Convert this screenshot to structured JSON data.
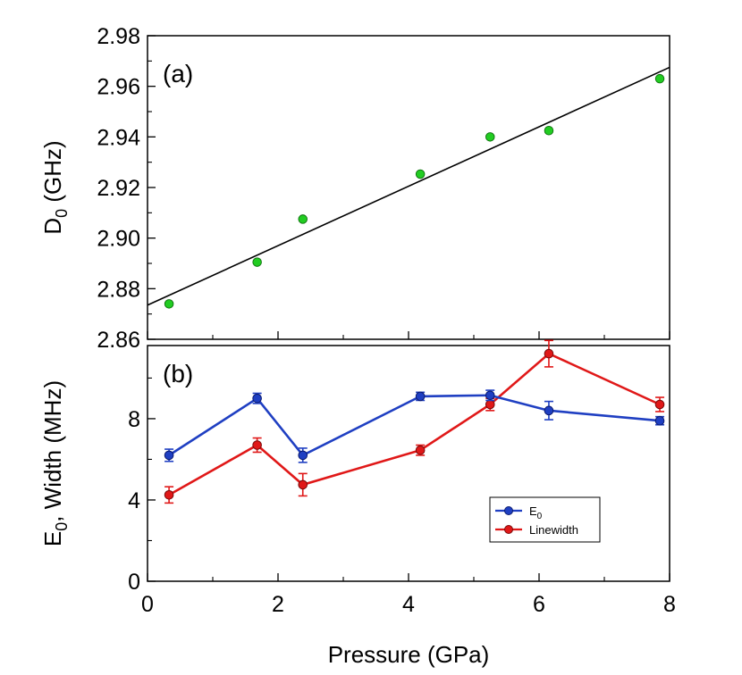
{
  "chart_data": [
    {
      "panel": "(a)",
      "type": "scatter",
      "ylabel_main": "D",
      "ylabel_sub": "0",
      "ylabel_rest": " (GHz)",
      "xlim": [
        0,
        8
      ],
      "ylim": [
        2.86,
        2.98
      ],
      "yticks": [
        2.86,
        2.88,
        2.9,
        2.92,
        2.94,
        2.96,
        2.98
      ],
      "ytick_labels": [
        "2.86",
        "2.88",
        "2.90",
        "2.92",
        "2.94",
        "2.96",
        "2.98"
      ],
      "series": [
        {
          "x": [
            0.33,
            1.68,
            2.38,
            4.18,
            5.25,
            6.15,
            7.85
          ],
          "y": [
            2.874,
            2.8905,
            2.9075,
            2.9253,
            2.94,
            2.9425,
            2.963
          ],
          "color": "#22cc22"
        }
      ],
      "fit_line": {
        "x": [
          0.0,
          8.0
        ],
        "y": [
          2.8735,
          2.9675
        ],
        "color": "#000000"
      },
      "grid": false
    },
    {
      "panel": "(b)",
      "type": "line",
      "ylabel_E": "E",
      "ylabel_sub": "0",
      "ylabel_rest": ", Width (MHz)",
      "xlabel": "Pressure (GPa)",
      "xlim": [
        0,
        8
      ],
      "ylim": [
        0,
        11.6
      ],
      "xticks": [
        0,
        2,
        4,
        6,
        8
      ],
      "xtick_labels": [
        "0",
        "2",
        "4",
        "6",
        "8"
      ],
      "yticks": [
        0,
        4,
        8
      ],
      "ytick_labels": [
        "0",
        "4",
        "8"
      ],
      "series": [
        {
          "name_main": "E",
          "name_sub": "0",
          "color": "#1f3fc2",
          "x": [
            0.33,
            1.68,
            2.38,
            4.18,
            5.25,
            6.15,
            7.85
          ],
          "y": [
            6.2,
            9.0,
            6.2,
            9.1,
            9.15,
            8.4,
            7.9
          ],
          "err": [
            0.3,
            0.25,
            0.35,
            0.2,
            0.25,
            0.45,
            0.2
          ]
        },
        {
          "name_main": "Linewidth",
          "name_sub": "",
          "color": "#e01818",
          "x": [
            0.33,
            1.68,
            2.38,
            4.18,
            5.25,
            6.15,
            7.85
          ],
          "y": [
            4.25,
            6.7,
            4.75,
            6.45,
            8.7,
            11.2,
            8.7
          ],
          "err": [
            0.4,
            0.35,
            0.55,
            0.25,
            0.3,
            0.65,
            0.35
          ]
        }
      ],
      "legend_position": "lower-right",
      "grid": false
    }
  ]
}
